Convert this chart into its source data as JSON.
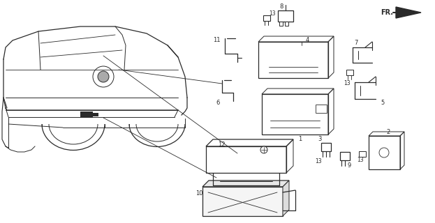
{
  "background_color": "#ffffff",
  "line_color": "#2a2a2a",
  "figsize": [
    6.23,
    3.2
  ],
  "dpi": 100
}
